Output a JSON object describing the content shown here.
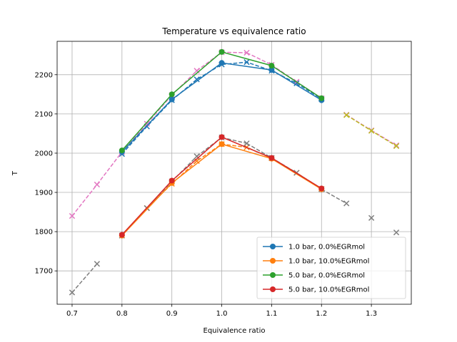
{
  "chart_data": {
    "type": "line",
    "title": "Temperature vs equivalence ratio",
    "xlabel": "Equivalence ratio",
    "ylabel": "T",
    "xlim": [
      0.67,
      1.38
    ],
    "ylim": [
      1615,
      2285
    ],
    "xticks": [
      0.7,
      0.8,
      0.9,
      1.0,
      1.1,
      1.2,
      1.3
    ],
    "xtick_labels": [
      "0.7",
      "0.8",
      "0.9",
      "1.0",
      "1.1",
      "1.2",
      "1.3"
    ],
    "yticks": [
      1700,
      1800,
      1900,
      2000,
      2100,
      2200
    ],
    "ytick_labels": [
      "1700",
      "1800",
      "1900",
      "2000",
      "2100",
      "2200"
    ],
    "grid": true,
    "legend_position": "bottom-right",
    "series": [
      {
        "name": "1.0 bar, 0.0%EGRmol",
        "color": "#1f77b4",
        "style": "solid",
        "marker": "circle",
        "x": [
          0.8,
          0.9,
          1.0,
          1.1,
          1.2
        ],
        "y": [
          2003,
          2137,
          2230,
          2212,
          2135
        ]
      },
      {
        "name": "1.0 bar, 10.0%EGRmol",
        "color": "#ff7f0e",
        "style": "solid",
        "marker": "circle",
        "x": [
          0.8,
          0.9,
          1.0,
          1.1,
          1.2
        ],
        "y": [
          1790,
          1924,
          2023,
          1986,
          1908
        ]
      },
      {
        "name": "5.0 bar, 0.0%EGRmol",
        "color": "#2ca02c",
        "style": "solid",
        "marker": "circle",
        "x": [
          0.8,
          0.9,
          1.0,
          1.1,
          1.2
        ],
        "y": [
          2007,
          2150,
          2258,
          2223,
          2140
        ]
      },
      {
        "name": "5.0 bar, 10.0%EGRmol",
        "color": "#d62728",
        "style": "solid",
        "marker": "circle",
        "x": [
          0.8,
          0.9,
          1.0,
          1.1,
          1.2
        ],
        "y": [
          1792,
          1930,
          2041,
          1988,
          1910
        ]
      },
      {
        "color": "#1f77b4",
        "style": "dashed",
        "marker": "x",
        "x": [
          0.8,
          0.85,
          0.9,
          0.95,
          1.0,
          1.05,
          1.1,
          1.15,
          1.2
        ],
        "y": [
          1998,
          2068,
          2135,
          2188,
          2226,
          2232,
          2210,
          2178,
          2138
        ]
      },
      {
        "color": "#ff7f0e",
        "style": "dashed",
        "marker": "x",
        "x": [
          0.8,
          0.85,
          0.9,
          0.95,
          1.0,
          1.05,
          1.1,
          1.15,
          1.2
        ],
        "y": [
          1790,
          1860,
          1922,
          1980,
          2023,
          2015,
          1987,
          1950,
          1909
        ]
      },
      {
        "color": "#e377c2",
        "style": "dashed",
        "marker": "x",
        "x": [
          0.7,
          0.75,
          0.8,
          0.85,
          0.9,
          0.95,
          1.0,
          1.05,
          1.1,
          1.15,
          1.2,
          1.25,
          1.3,
          1.35
        ],
        "y": [
          1840,
          1920,
          2003,
          2075,
          2148,
          2210,
          2257,
          2256,
          2225,
          2182,
          2140,
          2098,
          2058,
          2020
        ],
        "segments": [
          [
            0,
            1
          ],
          [
            1,
            2
          ],
          [
            2,
            3
          ],
          [
            3,
            4
          ],
          [
            4,
            5
          ],
          [
            5,
            6
          ],
          [
            6,
            7
          ],
          [
            7,
            8
          ],
          [
            8,
            9
          ],
          [
            9,
            10
          ],
          [
            11,
            12
          ],
          [
            12,
            13
          ]
        ]
      },
      {
        "color": "#7f7f7f",
        "style": "dashed",
        "marker": "x",
        "x": [
          0.7,
          0.75,
          0.8,
          0.85,
          0.9,
          0.95,
          1.0,
          1.05,
          1.1,
          1.15,
          1.2,
          1.25,
          1.3,
          1.35
        ],
        "y": [
          1645,
          1718,
          1790,
          1860,
          1928,
          1992,
          2040,
          2025,
          1988,
          1950,
          1908,
          1872,
          1835,
          1798
        ],
        "segments": [
          [
            0,
            1
          ],
          [
            2,
            3
          ],
          [
            3,
            4
          ],
          [
            4,
            5
          ],
          [
            5,
            6
          ],
          [
            6,
            7
          ],
          [
            7,
            8
          ],
          [
            8,
            9
          ],
          [
            9,
            10
          ],
          [
            10,
            11
          ]
        ]
      },
      {
        "color": "#bcbd22",
        "style": "dashed",
        "marker": "x",
        "x": [
          1.25,
          1.3,
          1.35
        ],
        "y": [
          2097,
          2057,
          2018
        ]
      }
    ]
  }
}
